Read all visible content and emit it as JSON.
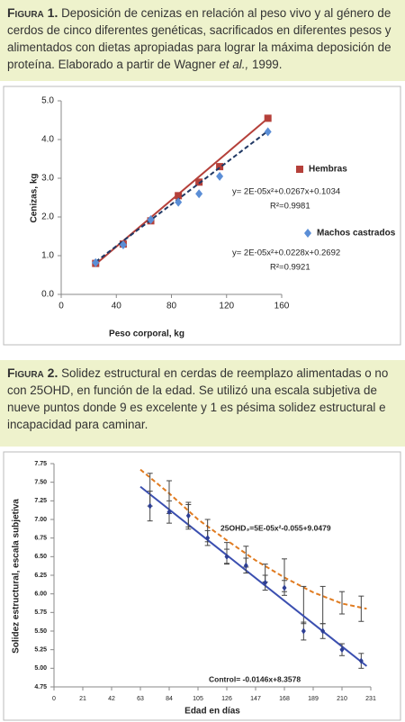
{
  "figure_1": {
    "label": "Figura 1.",
    "text": "Deposición de cenizas en relación al peso vivo y al género de cerdos de cinco diferentes genéticas, sacrificados en diferentes pesos y alimentados con dietas apropiadas para lograr la máxima deposición de proteína. Elaborado a partir de Wagner ",
    "italic": "et al.,",
    "text_end": " 1999."
  },
  "figure_2": {
    "label": "Figura 2.",
    "text": "Solidez estructural en cerdas de reemplazo alimentadas o no con 25OHD, en función de la edad. Se utilizó una escala subjetiva de nueve puntos donde 9 es excelente y 1 es pésima solidez estructural e incapacidad para caminar."
  },
  "chart_data": [
    {
      "type": "scatter",
      "x_label": "Peso corporal, kg",
      "y_label": "Cenizas, kg",
      "xlim": [
        0,
        160
      ],
      "xticks": [
        0,
        40,
        80,
        120,
        160
      ],
      "ylim": [
        0,
        5
      ],
      "yticks": [
        {
          "value": 0,
          "label": "0.0"
        },
        {
          "value": 1,
          "label": "1.0"
        },
        {
          "value": 2,
          "label": "2.0"
        },
        {
          "value": 3,
          "label": "3.0"
        },
        {
          "value": 4,
          "label": "4.0"
        },
        {
          "value": 5,
          "label": "5.0"
        }
      ],
      "series": [
        {
          "name": "Hembras",
          "color": "#b5403a",
          "marker": "square",
          "trend_color": "#b5403a",
          "dashed": false,
          "x": [
            25,
            45,
            65,
            85,
            100,
            115,
            150
          ],
          "values": [
            0.8,
            1.3,
            1.9,
            2.55,
            2.9,
            3.3,
            4.55
          ],
          "trend": {
            "x": [
              25,
              150
            ],
            "values": [
              0.78,
              4.55
            ]
          },
          "equation": "y= 2E-05x²+0.0267x+0.1034",
          "r_squared": "R²=0.9981"
        },
        {
          "name": "Machos castrados",
          "color": "#5b8ed6",
          "marker": "diamond",
          "trend_color": "#203864",
          "dashed": true,
          "x": [
            25,
            45,
            65,
            85,
            100,
            115,
            150
          ],
          "values": [
            0.82,
            1.28,
            1.93,
            2.38,
            2.6,
            3.05,
            4.2
          ],
          "trend": {
            "x": [
              25,
              150
            ],
            "values": [
              0.84,
              4.22
            ]
          },
          "equation": "y= 2E-05x²+0.0228x+0.2692",
          "r_squared": "R²=0.9921"
        }
      ]
    },
    {
      "type": "scatter",
      "x_label": "Edad en días",
      "y_label": "Solidez estructural, escala subjetiva",
      "xlim": [
        0,
        231
      ],
      "xticks": [
        0,
        21,
        42,
        63,
        84,
        105,
        126,
        147,
        168,
        189,
        210,
        231
      ],
      "ylim": [
        4.75,
        7.75
      ],
      "yticks": [
        4.75,
        {
          "value": 5,
          "label": "5.00"
        },
        5.25,
        {
          "value": 5.5,
          "label": "5.50"
        },
        5.75,
        {
          "value": 6,
          "label": "6.00"
        },
        6.25,
        {
          "value": 6.5,
          "label": "6.50"
        },
        6.75,
        {
          "value": 7,
          "label": "7.00"
        },
        7.25,
        {
          "value": 7.5,
          "label": "7.50"
        },
        7.75
      ],
      "error_bar_color": "#444444",
      "series": [
        {
          "color": "#e07b20",
          "trend_color": "#e07b20",
          "dashed": true,
          "x": [
            70,
            84,
            98,
            112,
            126,
            140,
            154,
            168,
            182,
            196,
            210,
            224
          ],
          "values": [
            7.4,
            7.3,
            7.05,
            6.85,
            6.55,
            6.5,
            6.28,
            6.25,
            5.85,
            5.85,
            5.88,
            5.8
          ],
          "errors": [
            0.22,
            0.22,
            0.18,
            0.15,
            0.14,
            0.14,
            0.12,
            0.22,
            0.25,
            0.25,
            0.15,
            0.17
          ],
          "trend": {
            "x": [
              63,
              84,
              105,
              126,
              147,
              168,
              189,
              210,
              228
            ],
            "values": [
              7.67,
              7.35,
              7.0,
              6.72,
              6.45,
              6.22,
              6.02,
              5.87,
              5.8
            ]
          },
          "label": "25OHD₃=5E-05x²-0.055+9.0479"
        },
        {
          "color": "#2e3f94",
          "marker": "diamond",
          "trend_color": "#3b4fb0",
          "dashed": false,
          "x": [
            70,
            84,
            98,
            112,
            126,
            140,
            154,
            168,
            182,
            196,
            210,
            224
          ],
          "values": [
            7.18,
            7.1,
            7.05,
            6.75,
            6.5,
            6.38,
            6.15,
            6.08,
            5.5,
            5.5,
            5.25,
            5.1
          ],
          "errors": [
            0.2,
            0.15,
            0.15,
            0.1,
            0.1,
            0.1,
            0.1,
            0.1,
            0.12,
            0.1,
            0.08,
            0.1
          ],
          "trend": {
            "x": [
              63,
              228
            ],
            "values": [
              7.44,
              5.03
            ]
          },
          "label": "Control= -0.0146x+8.3578"
        }
      ]
    }
  ]
}
